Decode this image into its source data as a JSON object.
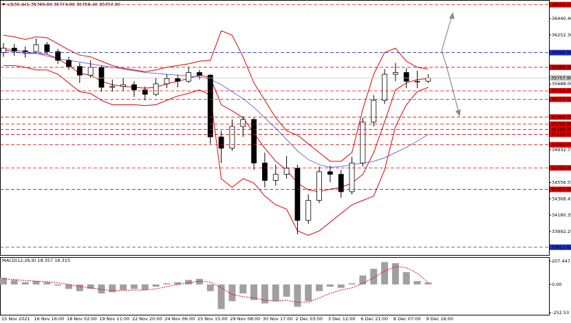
{
  "chart_data": [
    {
      "type": "candlestick",
      "title": "US30.sH1  35766.90 35774.90 35756.40 35757.90",
      "categories": [
        "15 Nov 2021",
        null,
        null,
        "16 Nov 16:00",
        null,
        null,
        "18 Nov 02:00",
        null,
        null,
        "19 Nov 11:00",
        null,
        null,
        "22 Nov 20:00",
        null,
        null,
        "24 Nov 06:00",
        null,
        null,
        "25 Nov 15:00",
        null,
        null,
        "29 Nov 08:00",
        null,
        null,
        "30 Nov 17:00",
        null,
        null,
        "2 Dec 03:00",
        null,
        null,
        "3 Dec 12:00",
        null,
        null,
        "6 Dec 21:00",
        null,
        null,
        "8 Dec 07:00",
        null,
        null,
        "9 Dec 16:00"
      ],
      "open": [
        36050,
        36100,
        36070,
        36060,
        36140,
        36060,
        35960,
        35890,
        35790,
        35880,
        35650,
        35660,
        35680,
        35620,
        35570,
        35690,
        35750,
        35720,
        35820,
        35790,
        35080,
        34950,
        35200,
        35280,
        34780,
        34580,
        34650,
        34720,
        34120,
        34350,
        34680,
        34650,
        34450,
        34780,
        35250,
        35500,
        35800,
        35820,
        35720,
        35720
      ],
      "high": [
        36160,
        36150,
        36120,
        36210,
        36170,
        36090,
        36000,
        35930,
        35960,
        35900,
        35740,
        35760,
        35720,
        35660,
        35760,
        35800,
        35790,
        35880,
        35850,
        35800,
        35150,
        35280,
        35320,
        35300,
        34900,
        34760,
        34860,
        34760,
        34420,
        34740,
        34750,
        34700,
        34850,
        35300,
        35560,
        35860,
        35930,
        35870,
        35840,
        35800
      ],
      "low": [
        36000,
        36010,
        35990,
        36040,
        36030,
        35920,
        35850,
        35700,
        35760,
        35600,
        35600,
        35610,
        35540,
        35500,
        35550,
        35640,
        35650,
        35700,
        35740,
        35000,
        34780,
        34920,
        35080,
        34700,
        34500,
        34520,
        34600,
        33960,
        34080,
        34320,
        34560,
        34380,
        34420,
        34740,
        35200,
        35460,
        35720,
        35640,
        35640,
        35700
      ],
      "close": [
        36100,
        36070,
        36060,
        36140,
        36060,
        35960,
        35890,
        35790,
        35880,
        35650,
        35660,
        35680,
        35620,
        35570,
        35690,
        35750,
        35720,
        35820,
        35790,
        35080,
        34950,
        35200,
        35280,
        34780,
        34580,
        34650,
        34720,
        34120,
        34350,
        34680,
        34650,
        34450,
        34780,
        35250,
        35500,
        35800,
        35820,
        35720,
        35720,
        35757.9
      ],
      "up_color": "#ffffff",
      "down_color": "#000000",
      "wick_color": "#000000",
      "series": [
        {
          "color": "#e00000",
          "values": [
            36250,
            36230,
            36200,
            36230,
            36220,
            36150,
            36080,
            36020,
            36000,
            35950,
            35900,
            35870,
            35850,
            35830,
            35850,
            35880,
            35900,
            35920,
            35950,
            35960,
            36300,
            36250,
            36000,
            35700,
            35500,
            35300,
            35150,
            35100,
            35000,
            34900,
            34800,
            34800,
            34900,
            35400,
            35800,
            36050,
            36100,
            35950,
            35880,
            35860
          ]
        },
        {
          "color": "#e00000",
          "values": [
            36080,
            36060,
            36040,
            36040,
            36030,
            35980,
            35900,
            35810,
            35790,
            35720,
            35680,
            35660,
            35650,
            35640,
            35650,
            35690,
            35720,
            35750,
            35790,
            35760,
            35450,
            35380,
            35300,
            35120,
            34950,
            34800,
            34700,
            34550,
            34470,
            34450,
            34480,
            34500,
            34550,
            34650,
            34900,
            35250,
            35620,
            35700,
            35740,
            35750
          ]
        },
        {
          "color": "#e00000",
          "values": [
            35900,
            35900,
            35880,
            35850,
            35850,
            35800,
            35700,
            35600,
            35580,
            35500,
            35450,
            35450,
            35450,
            35440,
            35450,
            35500,
            35550,
            35580,
            35620,
            35560,
            34600,
            34500,
            34600,
            34550,
            34400,
            34300,
            34250,
            34000,
            33950,
            34000,
            34100,
            34200,
            34300,
            34350,
            34400,
            34700,
            35200,
            35450,
            35600,
            35650
          ]
        },
        {
          "color": "#6f6fd0",
          "values": [
            36100,
            36080,
            36060,
            36040,
            36010,
            35980,
            35960,
            35940,
            35920,
            35900,
            35880,
            35860,
            35840,
            35820,
            35810,
            35800,
            35790,
            35780,
            35770,
            35740,
            35680,
            35600,
            35520,
            35420,
            35300,
            35180,
            35050,
            34920,
            34820,
            34760,
            34730,
            34740,
            34760,
            34780,
            34800,
            34840,
            34900,
            34960,
            35030,
            35110
          ]
        }
      ],
      "levels": [
        {
          "value": 36600,
          "label": "36600.00",
          "color": "#e00000"
        },
        {
          "value": 36048.58,
          "label": "36048.58",
          "color": "#2030c0"
        },
        {
          "value": 35880,
          "label": "35880.00",
          "color": "#e00000"
        },
        {
          "value": 35757.9,
          "label": "35757.90",
          "color": "#c0c0c0"
        },
        {
          "value": 35610,
          "label": "35610.00",
          "color": "#e00000"
        },
        {
          "value": 35512.12,
          "label": "35512.12",
          "color": "#e00000"
        },
        {
          "value": 35308.23,
          "label": "35308.23",
          "color": "#e00000"
        },
        {
          "value": 35226.8,
          "label": "35226.80",
          "color": "#e00000"
        },
        {
          "value": 35166,
          "label": "35166.00",
          "color": "#e00000"
        },
        {
          "value": 35110,
          "label": "35110.00",
          "color": "#e00000"
        },
        {
          "value": 34990,
          "label": "34990.00",
          "color": "#e00000"
        },
        {
          "value": 34724,
          "label": "34724.00",
          "color": "#e00000"
        },
        {
          "value": 34477,
          "label": "34477.00",
          "color": "#e00000"
        },
        {
          "value": 33811.92,
          "label": "33811.92",
          "color": "#2030c0"
        }
      ],
      "ylim": [
        33731,
        36614
      ],
      "yticks": [
        {
          "value": 36440.4,
          "label": "36440.40"
        },
        {
          "value": 36252.3,
          "label": "36252.30"
        },
        {
          "value": 35688,
          "label": "35688.00"
        },
        34932.75,
        34556.55,
        34368.45,
        34180.35,
        33992.25
      ]
    },
    {
      "type": "macd",
      "title": "MACD(12,26,9) 18.357 16.315",
      "values": [
        60,
        40,
        20,
        30,
        20,
        -10,
        -40,
        -60,
        -40,
        -80,
        -70,
        -50,
        -40,
        -50,
        -20,
        10,
        20,
        40,
        50,
        -60,
        -220,
        -150,
        -80,
        -140,
        -170,
        -150,
        -110,
        -200,
        -150,
        -60,
        -20,
        -30,
        10,
        80,
        140,
        200,
        190,
        110,
        30,
        18.357
      ],
      "color": "#a0a0a0",
      "signal": {
        "color": "#e00000",
        "values": [
          50,
          45,
          35,
          30,
          25,
          15,
          0,
          -20,
          -30,
          -45,
          -55,
          -55,
          -50,
          -50,
          -40,
          -20,
          0,
          15,
          30,
          20,
          -30,
          -90,
          -110,
          -120,
          -140,
          -150,
          -140,
          -160,
          -160,
          -120,
          -80,
          -50,
          -30,
          10,
          60,
          120,
          160,
          150,
          100,
          16.315
        ]
      },
      "ylim": [
        -265,
        239
      ],
      "yticks": [
        207.447,
        {
          "value": 0,
          "label": "0.00"
        },
        -252.53
      ]
    }
  ]
}
